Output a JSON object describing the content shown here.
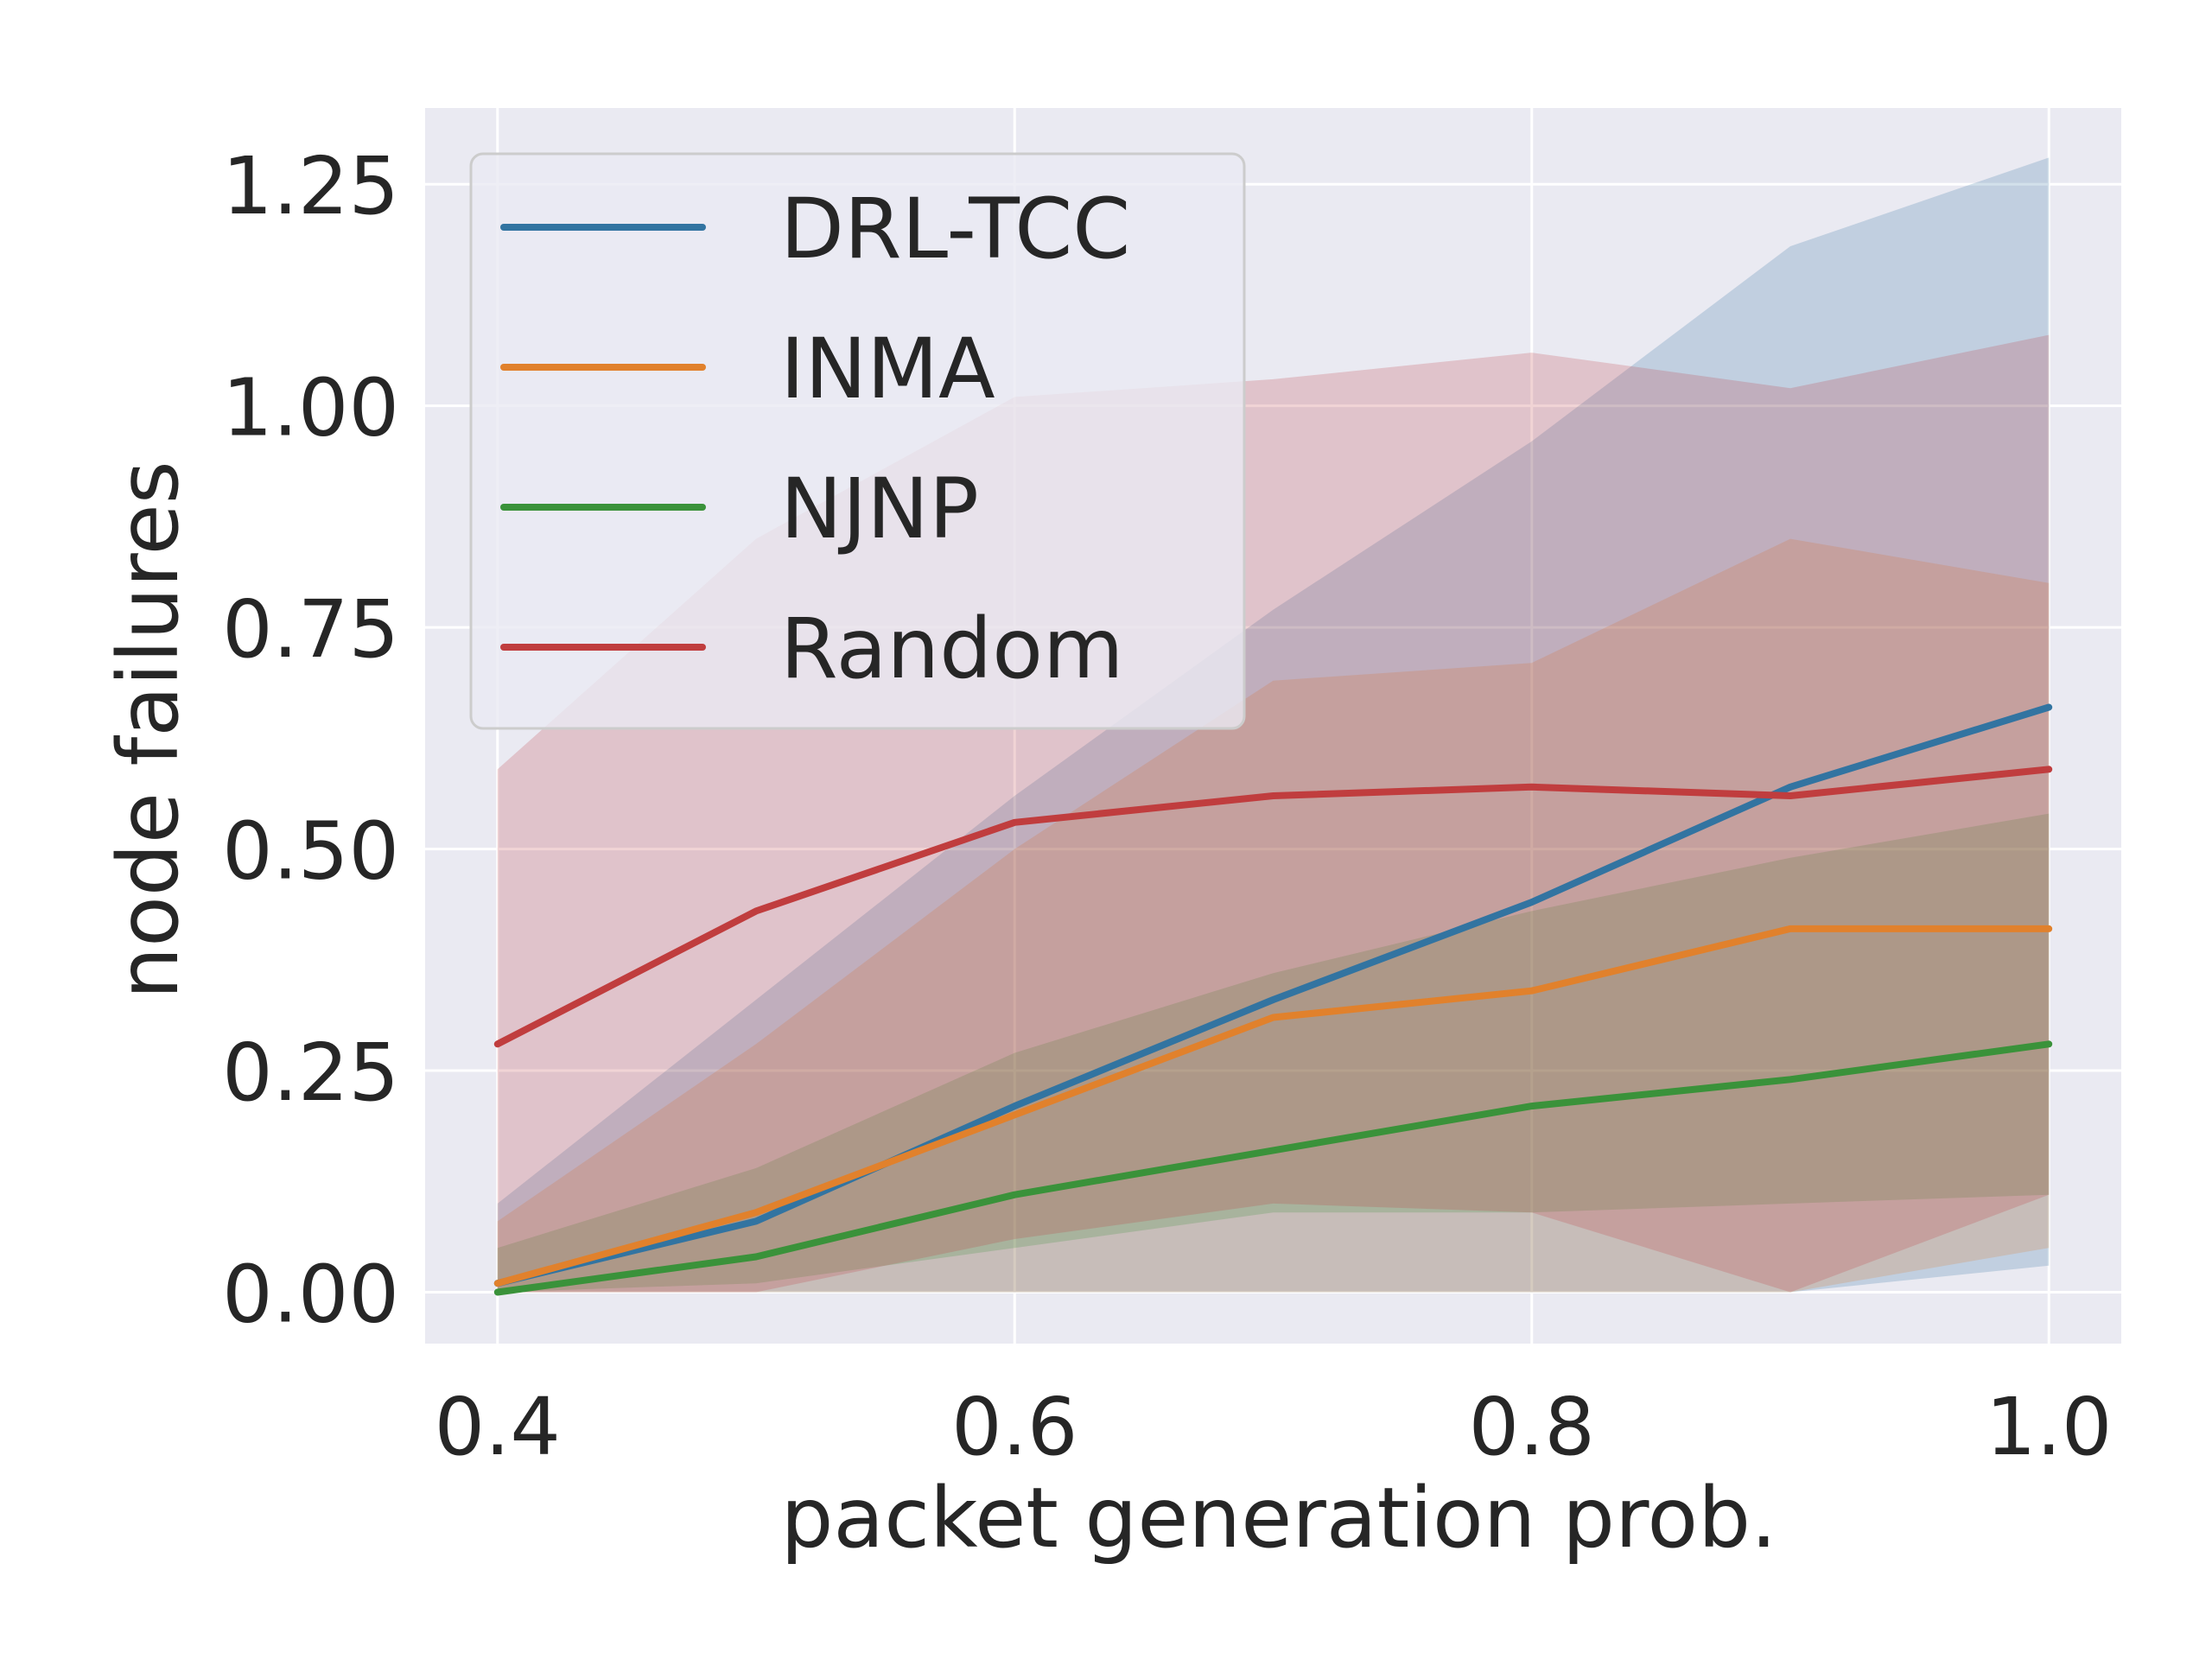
{
  "chart_data": {
    "type": "line",
    "title": "",
    "xlabel": "packet generation prob.",
    "ylabel": "node failures",
    "x": [
      0.4,
      0.5,
      0.6,
      0.7,
      0.8,
      0.9,
      1.0
    ],
    "xlim": [
      0.372,
      1.028
    ],
    "ylim": [
      -0.058,
      1.336
    ],
    "xticks": [
      0.4,
      0.6,
      0.8,
      1.0
    ],
    "xtick_labels": [
      "0.4",
      "0.6",
      "0.8",
      "1.0"
    ],
    "yticks": [
      0.0,
      0.25,
      0.5,
      0.75,
      1.0,
      1.25
    ],
    "ytick_labels": [
      "0.00",
      "0.25",
      "0.50",
      "0.75",
      "1.00",
      "1.25"
    ],
    "grid": true,
    "background": "#eaeaf2",
    "legend_position": "top-left",
    "series": [
      {
        "name": "DRL-TCC",
        "color": "#3274a1",
        "values": [
          0.01,
          0.08,
          0.21,
          0.33,
          0.44,
          0.57,
          0.66
        ],
        "lower": [
          0.0,
          0.0,
          0.0,
          0.0,
          0.0,
          0.0,
          0.03
        ],
        "upper": [
          0.1,
          0.33,
          0.56,
          0.77,
          0.96,
          1.18,
          1.28
        ]
      },
      {
        "name": "INMA",
        "color": "#e1812c",
        "values": [
          0.01,
          0.09,
          0.2,
          0.31,
          0.34,
          0.41,
          0.41
        ],
        "lower": [
          0.0,
          0.0,
          0.0,
          0.0,
          0.0,
          0.0,
          0.05
        ],
        "upper": [
          0.08,
          0.28,
          0.5,
          0.69,
          0.71,
          0.85,
          0.8
        ]
      },
      {
        "name": "NJNP",
        "color": "#3a923a",
        "values": [
          0.0,
          0.04,
          0.11,
          0.16,
          0.21,
          0.24,
          0.28
        ],
        "lower": [
          0.0,
          0.01,
          0.05,
          0.09,
          0.09,
          0.1,
          0.11
        ],
        "upper": [
          0.05,
          0.14,
          0.27,
          0.36,
          0.43,
          0.49,
          0.54
        ]
      },
      {
        "name": "Random",
        "color": "#c03d3e",
        "values": [
          0.28,
          0.43,
          0.53,
          0.56,
          0.57,
          0.56,
          0.59
        ],
        "lower": [
          0.0,
          0.0,
          0.06,
          0.1,
          0.09,
          0.0,
          0.11
        ],
        "upper": [
          0.59,
          0.85,
          1.01,
          1.03,
          1.06,
          1.02,
          1.08
        ]
      }
    ]
  }
}
